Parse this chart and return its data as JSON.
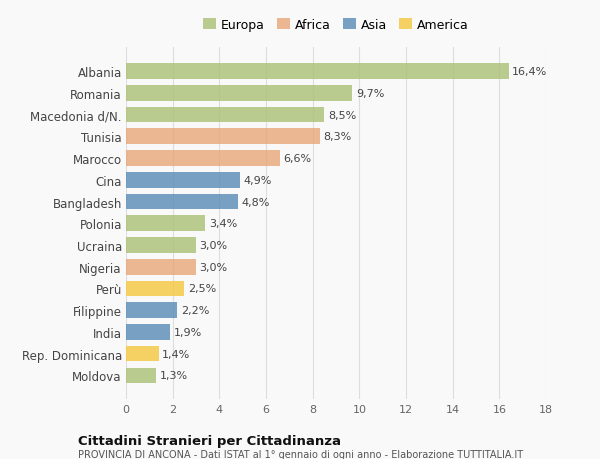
{
  "categories": [
    "Albania",
    "Romania",
    "Macedonia d/N.",
    "Tunisia",
    "Marocco",
    "Cina",
    "Bangladesh",
    "Polonia",
    "Ucraina",
    "Nigeria",
    "Perù",
    "Filippine",
    "India",
    "Rep. Dominicana",
    "Moldova"
  ],
  "values": [
    16.4,
    9.7,
    8.5,
    8.3,
    6.6,
    4.9,
    4.8,
    3.4,
    3.0,
    3.0,
    2.5,
    2.2,
    1.9,
    1.4,
    1.3
  ],
  "labels": [
    "16,4%",
    "9,7%",
    "8,5%",
    "8,3%",
    "6,6%",
    "4,9%",
    "4,8%",
    "3,4%",
    "3,0%",
    "3,0%",
    "2,5%",
    "2,2%",
    "1,9%",
    "1,4%",
    "1,3%"
  ],
  "continents": [
    "Europa",
    "Europa",
    "Europa",
    "Africa",
    "Africa",
    "Asia",
    "Asia",
    "Europa",
    "Europa",
    "Africa",
    "America",
    "Asia",
    "Asia",
    "America",
    "Europa"
  ],
  "colors": {
    "Europa": "#adc178",
    "Africa": "#e8a87c",
    "Asia": "#5b8db8",
    "America": "#f5c842"
  },
  "xlim": [
    0,
    18
  ],
  "xticks": [
    0,
    2,
    4,
    6,
    8,
    10,
    12,
    14,
    16,
    18
  ],
  "title": "Cittadini Stranieri per Cittadinanza",
  "subtitle": "PROVINCIA DI ANCONA - Dati ISTAT al 1° gennaio di ogni anno - Elaborazione TUTTITALIA.IT",
  "background_color": "#f9f9f9",
  "grid_color": "#dddddd",
  "bar_alpha": 0.82,
  "bar_height": 0.72
}
